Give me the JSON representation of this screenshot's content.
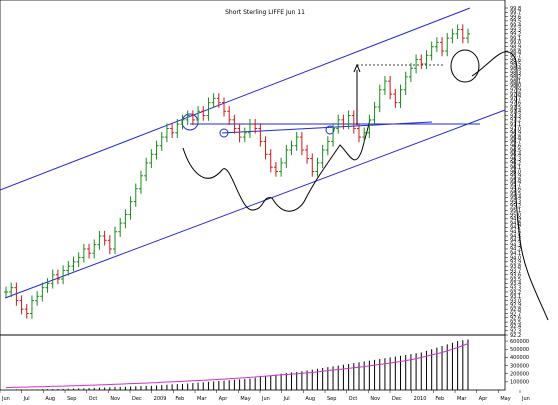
{
  "chart_data": {
    "type": "ohlc",
    "title": "Short Sterling LIFFE Jun 11",
    "x_labels": [
      "Jun",
      "Jul",
      "Aug",
      "Sep",
      "Oct",
      "Nov",
      "Dec",
      "2009",
      "Feb",
      "Mar",
      "Apr",
      "May",
      "Jun",
      "Jul",
      "Aug",
      "Sep",
      "Oct",
      "Nov",
      "Dec",
      "2010",
      "Feb",
      "Mar",
      "Apr",
      "May",
      "Jun"
    ],
    "y_ticks": [
      "99.8",
      "99.7",
      "99.6",
      "99.5",
      "99.4",
      "99.3",
      "99.2",
      "99.1",
      "99.0",
      "98.9",
      "98.8",
      "98.7",
      "98.6",
      "98.5",
      "98.4",
      "98.3",
      "98.2",
      "98.1",
      "98.0",
      "97.9",
      "97.8",
      "97.7",
      "97.6",
      "97.5",
      "97.4",
      "97.3",
      "97.2",
      "97.1",
      "97.0",
      "96.9",
      "96.8",
      "96.7",
      "96.6",
      "96.5",
      "96.4",
      "96.3",
      "96.2",
      "96.1",
      "96.0",
      "95.9",
      "95.8",
      "95.7",
      "95.6",
      "95.5",
      "95.4",
      "95.3",
      "95.2",
      "95.1",
      "95.0",
      "94.9",
      "94.8",
      "94.7",
      "94.6",
      "94.5",
      "94.4",
      "94.3",
      "94.2",
      "94.1",
      "94.0",
      "93.9",
      "93.8",
      "93.7",
      "93.6",
      "93.5",
      "93.4",
      "93.3",
      "93.2",
      "93.1",
      "93.0",
      "92.9",
      "92.8",
      "92.7",
      "92.6",
      "92.5",
      "92.4",
      "92.3",
      "92.2"
    ],
    "ylim": [
      92.2,
      99.8
    ],
    "closes": [
      93.2,
      93.3,
      93.0,
      92.8,
      92.7,
      93.0,
      93.1,
      93.3,
      93.4,
      93.6,
      93.5,
      93.7,
      93.8,
      93.9,
      94.0,
      94.2,
      94.1,
      94.3,
      94.5,
      94.4,
      94.2,
      94.6,
      94.8,
      95.0,
      95.3,
      95.6,
      95.9,
      96.2,
      96.4,
      96.6,
      96.8,
      97.0,
      96.9,
      97.1,
      97.2,
      97.3,
      97.2,
      97.4,
      97.3,
      97.6,
      97.7,
      97.6,
      97.4,
      97.2,
      97.0,
      96.8,
      96.9,
      97.1,
      97.0,
      96.7,
      96.4,
      96.1,
      96.0,
      96.2,
      96.5,
      96.6,
      96.8,
      96.5,
      96.3,
      96.0,
      96.2,
      96.5,
      96.7,
      97.0,
      97.2,
      97.1,
      97.3,
      97.0,
      96.8,
      96.9,
      97.2,
      97.5,
      97.9,
      98.1,
      97.8,
      97.6,
      97.9,
      98.2,
      98.4,
      98.6,
      98.5,
      98.7,
      98.9,
      99.0,
      98.8,
      99.1,
      99.2,
      99.3,
      99.1,
      99.2
    ],
    "volume_ticks": [
      "600000",
      "500000",
      "400000",
      "300000",
      "200000",
      "100000"
    ],
    "volume_ylim": [
      0,
      650000
    ],
    "volumes": [
      5000,
      5000,
      8000,
      6000,
      6000,
      7000,
      7000,
      9000,
      10000,
      11000,
      12000,
      14000,
      15000,
      17000,
      19000,
      21000,
      23000,
      26000,
      28000,
      30000,
      33000,
      36000,
      38000,
      40000,
      42000,
      45000,
      48000,
      50000,
      52000,
      55000,
      60000,
      65000,
      70000,
      72000,
      75000,
      80000,
      85000,
      90000,
      95000,
      100000,
      105000,
      110000,
      115000,
      120000,
      125000,
      130000,
      135000,
      140000,
      150000,
      160000,
      170000,
      180000,
      190000,
      200000,
      210000,
      215000,
      220000,
      230000,
      240000,
      250000,
      260000,
      270000,
      280000,
      290000,
      300000,
      310000,
      320000,
      330000,
      340000,
      350000,
      360000,
      370000,
      380000,
      390000,
      400000,
      410000,
      420000,
      430000,
      440000,
      450000,
      460000,
      480000,
      500000,
      520000,
      540000,
      560000,
      580000,
      600000,
      610000,
      620000
    ],
    "oi_line": [
      30000,
      32000,
      33000,
      35000,
      36000,
      38000,
      40000,
      41000,
      43000,
      45000,
      46000,
      48000,
      50000,
      52000,
      54000,
      56000,
      58000,
      60000,
      62000,
      65000,
      68000,
      70000,
      72000,
      75000,
      78000,
      80000,
      82000,
      85000,
      88000,
      90000,
      95000,
      98000,
      100000,
      103000,
      106000,
      110000,
      113000,
      116000,
      120000,
      123000,
      126000,
      130000,
      134000,
      138000,
      142000,
      146000,
      150000,
      154000,
      160000,
      165000,
      170000,
      175000,
      180000,
      185000,
      190000,
      195000,
      200000,
      205000,
      210000,
      215000,
      222000,
      230000,
      238000,
      245000,
      252000,
      258000,
      265000,
      272000,
      280000,
      288000,
      296000,
      305000,
      314000,
      322000,
      330000,
      340000,
      350000,
      360000,
      372000,
      385000,
      400000,
      415000,
      430000,
      445000,
      460000,
      480000,
      500000,
      520000,
      545000,
      570000
    ],
    "colors": {
      "background": "#ffffff",
      "channel": "#1f2bd8",
      "up_bar": "#1a8a1a",
      "down_bar": "#d01818",
      "annotation": "#000000",
      "volume_bar": "#000000",
      "oi_line": "#cc33cc",
      "axis": "#000000"
    }
  }
}
